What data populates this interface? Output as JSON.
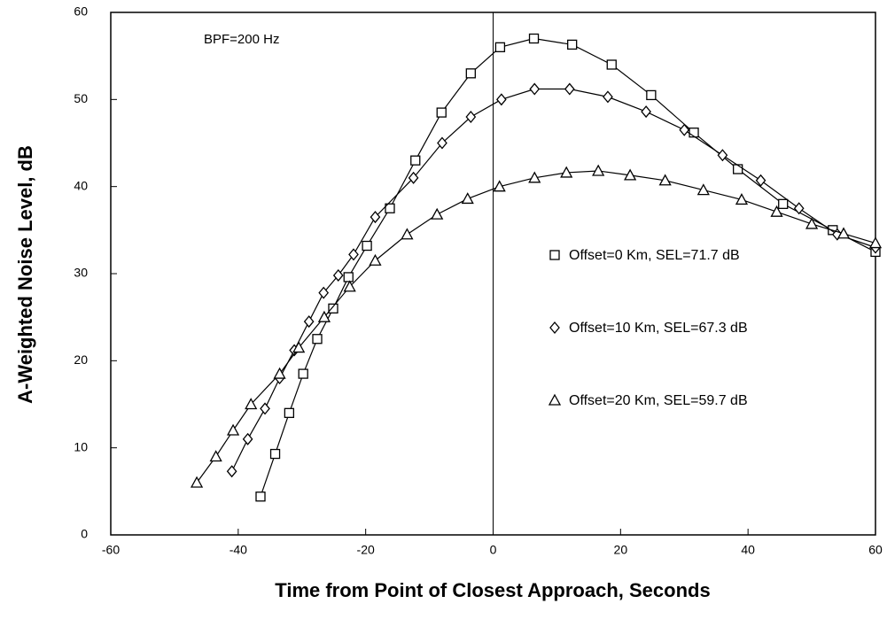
{
  "chart_data": {
    "type": "line",
    "annotation": "BPF=200 Hz",
    "xlabel": "Time from Point of Closest Approach, Seconds",
    "ylabel": "A-Weighted Noise Level, dB",
    "xlim": [
      -60,
      60
    ],
    "xticks": [
      -60,
      -40,
      -20,
      0,
      20,
      40,
      60
    ],
    "ylim": [
      0,
      60
    ],
    "yticks": [
      0,
      10,
      20,
      30,
      40,
      50,
      60
    ],
    "legend": "right",
    "series": [
      {
        "name": "Offset=0 Km, SEL=71.7 dB",
        "color": "#000000",
        "marker": "square",
        "x": [
          -36.5,
          -34.2,
          -32,
          -29.8,
          -27.6,
          -25.1,
          -22.7,
          -19.8,
          -16.2,
          -12.2,
          -8.1,
          -3.5,
          1.1,
          6.4,
          12.4,
          18.6,
          24.8,
          31.5,
          38.4,
          45.5,
          53.3,
          60
        ],
        "values": [
          4.4,
          9.3,
          14,
          18.5,
          22.5,
          26,
          29.6,
          33.2,
          37.5,
          43,
          48.5,
          53,
          56,
          57,
          56.3,
          54,
          50.5,
          46.2,
          42,
          38,
          35,
          32.5
        ]
      },
      {
        "name": "Offset=10 Km, SEL=67.3 dB",
        "color": "#000000",
        "marker": "diamond",
        "x": [
          -41,
          -38.5,
          -35.8,
          -33.5,
          -31.2,
          -28.9,
          -26.6,
          -24.3,
          -21.9,
          -18.5,
          -12.5,
          -8,
          -3.5,
          1.3,
          6.5,
          12,
          18,
          24,
          30,
          36,
          42,
          48,
          54,
          60
        ],
        "values": [
          7.3,
          11,
          14.5,
          18,
          21.2,
          24.5,
          27.8,
          29.8,
          32.2,
          36.5,
          41,
          45,
          48,
          50,
          51.2,
          51.2,
          50.3,
          48.6,
          46.5,
          43.6,
          40.7,
          37.5,
          34.5,
          33
        ]
      },
      {
        "name": "Offset=20 Km, SEL=59.7 dB",
        "color": "#000000",
        "marker": "triangle",
        "x": [
          -46.5,
          -43.5,
          -40.8,
          -38,
          -33.5,
          -30.5,
          -26.5,
          -22.5,
          -18.5,
          -13.5,
          -8.8,
          -4,
          1,
          6.5,
          11.5,
          16.5,
          21.5,
          27,
          33,
          39,
          44.5,
          50,
          55,
          60
        ],
        "values": [
          6,
          9,
          12,
          15,
          18.5,
          21.5,
          25,
          28.5,
          31.5,
          34.5,
          36.8,
          38.6,
          40,
          41,
          41.6,
          41.8,
          41.3,
          40.7,
          39.6,
          38.5,
          37.1,
          35.7,
          34.6,
          33.5
        ]
      }
    ]
  }
}
